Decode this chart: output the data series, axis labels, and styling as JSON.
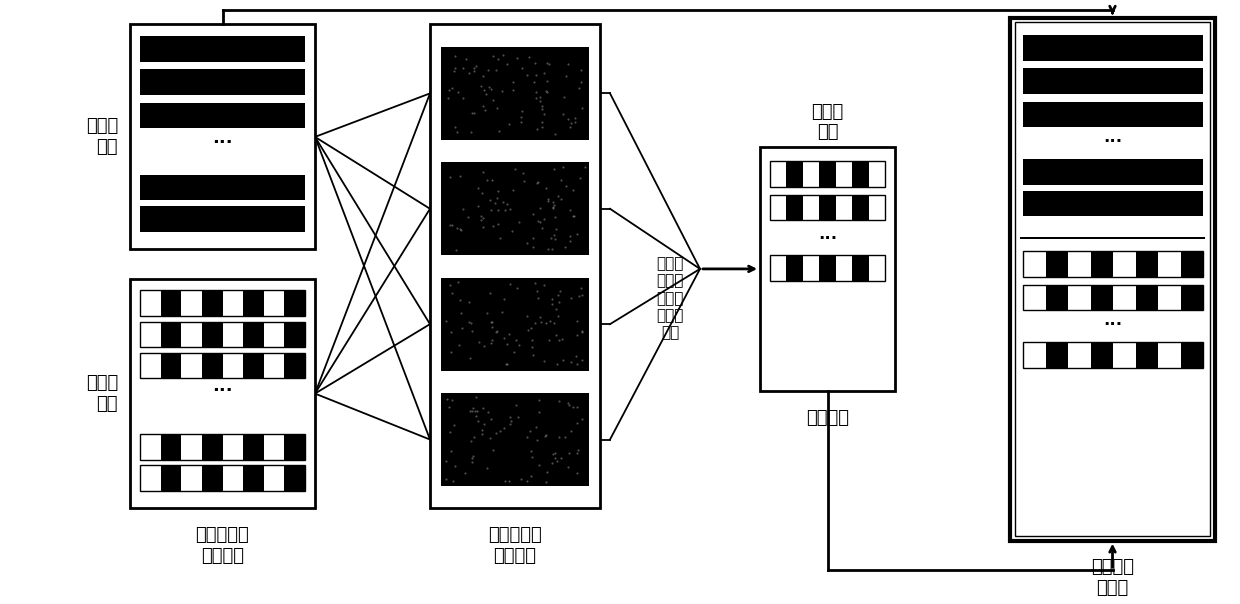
{
  "bg_color": "#ffffff",
  "labels": {
    "original_data": "原始的\n数据",
    "generated_data": "生成的\n数据",
    "train_label": "利用原始的\n数据训练",
    "test_label": "使用生成的\n数据测试",
    "select_text": "选择每\n次都能\n被正确\n分类的\n数据",
    "screen_label_top": "筛选的\n数据",
    "screen_label_bottom": "筛选数据",
    "build_label": "构建新的\n数据集"
  }
}
